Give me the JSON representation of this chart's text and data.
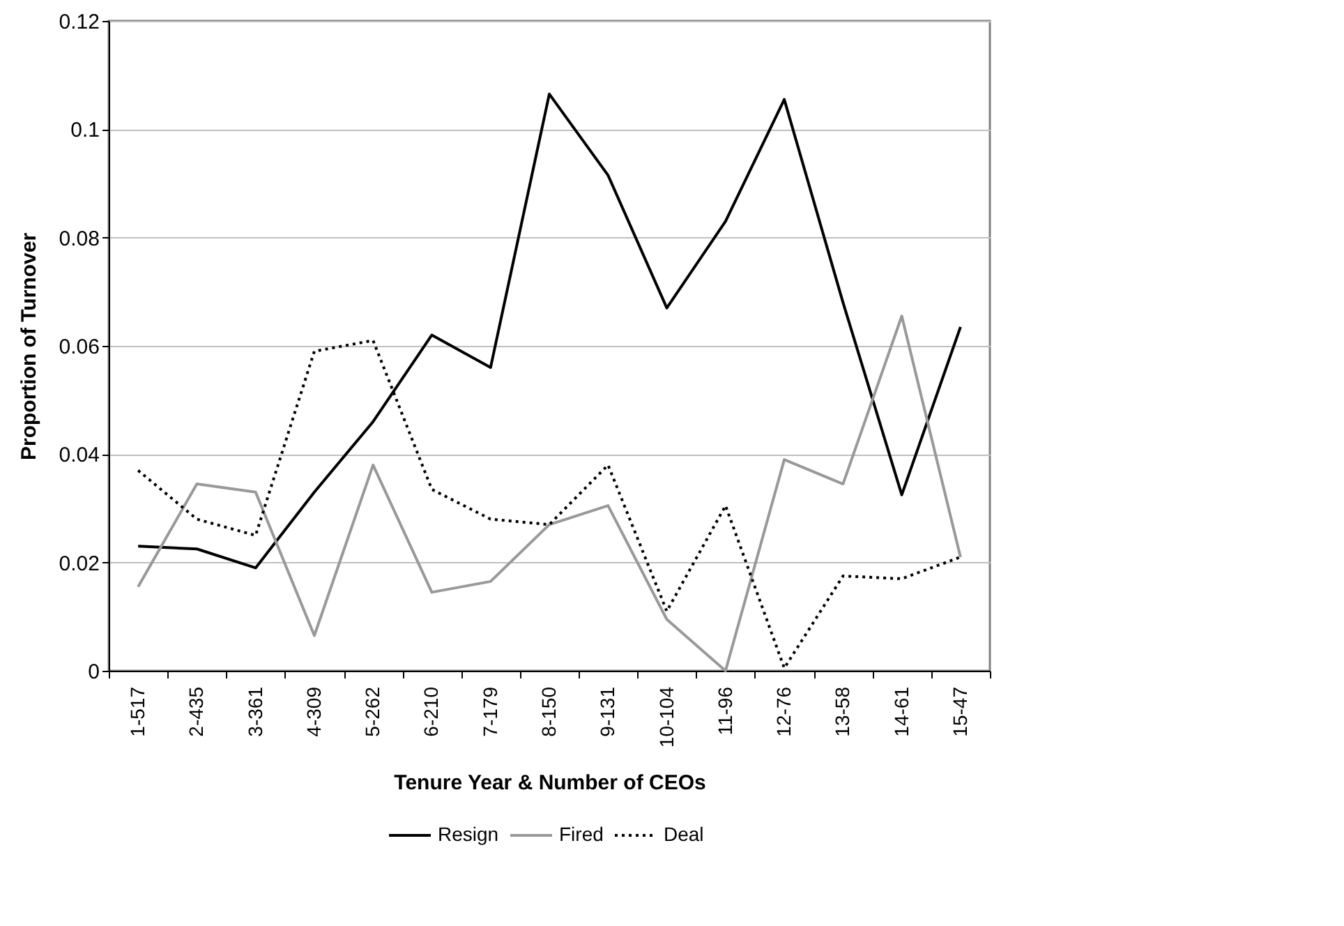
{
  "chart_data": {
    "type": "line",
    "xlabel": "Tenure Year & Number of CEOs",
    "ylabel": "Proportion of Turnover",
    "categories": [
      "1-517",
      "2-435",
      "3-361",
      "4-309",
      "5-262",
      "6-210",
      "7-179",
      "8-150",
      "9-131",
      "10-104",
      "11-96",
      "12-76",
      "13-58",
      "14-61",
      "15-47"
    ],
    "series": [
      {
        "name": "Resign",
        "color": "#000000",
        "line_style": "solid",
        "values": [
          0.023,
          0.0225,
          0.019,
          0.033,
          0.046,
          0.062,
          0.056,
          0.1065,
          0.0915,
          0.067,
          0.083,
          0.1055,
          0.068,
          0.0325,
          0.0635
        ]
      },
      {
        "name": "Fired",
        "color": "#999999",
        "line_style": "solid",
        "values": [
          0.0155,
          0.0345,
          0.033,
          0.0065,
          0.038,
          0.0145,
          0.0165,
          0.027,
          0.0305,
          0.0095,
          0,
          0.039,
          0.0345,
          0.0655,
          0.021
        ]
      },
      {
        "name": "Deal",
        "color": "#000000",
        "line_style": "dotted",
        "values": [
          0.037,
          0.028,
          0.025,
          0.059,
          0.061,
          0.0335,
          0.028,
          0.027,
          0.038,
          0.011,
          0.0305,
          0.0005,
          0.0175,
          0.017,
          0.021
        ]
      }
    ],
    "ylim": [
      0,
      0.12
    ],
    "yticks": [
      0,
      0.02,
      0.04,
      0.06,
      0.08,
      0.1,
      0.12
    ],
    "grid": "y",
    "legend": "bottom"
  }
}
